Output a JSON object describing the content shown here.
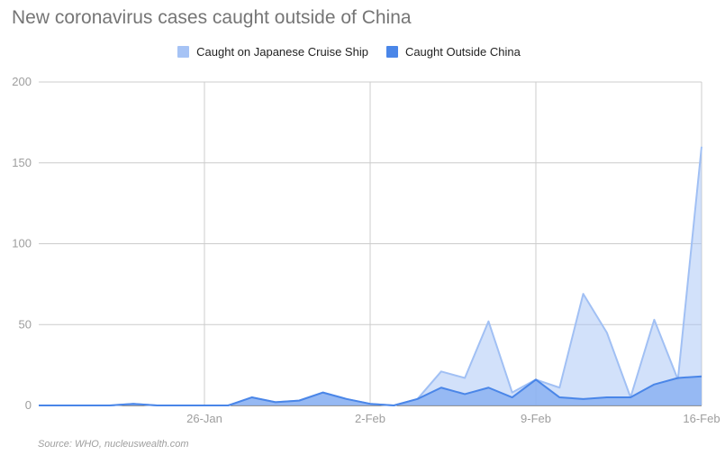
{
  "title": "New coronavirus cases caught outside of China",
  "source": "Source: WHO, nucleuswealth.com",
  "colors": {
    "cruise": "#a6c3f5",
    "cruise_line": "#a1c0f4",
    "outside": "#4a86e8",
    "outside_fill": "#8cb1f1",
    "grid": "#cccccc",
    "axis_text": "#9e9e9e"
  },
  "chart_data": {
    "type": "area",
    "title": "New coronavirus cases caught outside of China",
    "xlabel": "",
    "ylabel": "",
    "ylim": [
      0,
      200
    ],
    "yticks": [
      "0",
      "50",
      "100",
      "150",
      "200"
    ],
    "xticks": [
      {
        "date": "2020-01-26",
        "label": "26-Jan"
      },
      {
        "date": "2020-02-02",
        "label": "2-Feb"
      },
      {
        "date": "2020-02-09",
        "label": "9-Feb"
      },
      {
        "date": "2020-02-16",
        "label": "16-Feb"
      }
    ],
    "x": [
      "2020-01-19",
      "2020-01-20",
      "2020-01-21",
      "2020-01-22",
      "2020-01-23",
      "2020-01-24",
      "2020-01-25",
      "2020-01-26",
      "2020-01-27",
      "2020-01-28",
      "2020-01-29",
      "2020-01-30",
      "2020-01-31",
      "2020-02-01",
      "2020-02-02",
      "2020-02-03",
      "2020-02-04",
      "2020-02-05",
      "2020-02-06",
      "2020-02-07",
      "2020-02-08",
      "2020-02-09",
      "2020-02-10",
      "2020-02-11",
      "2020-02-12",
      "2020-02-13",
      "2020-02-14",
      "2020-02-15",
      "2020-02-16"
    ],
    "series": [
      {
        "name": "Caught on Japanese Cruise Ship",
        "values": [
          0,
          0,
          0,
          0,
          1,
          0,
          0,
          0,
          0,
          5,
          2,
          3,
          8,
          4,
          1,
          0,
          4,
          21,
          17,
          52,
          8,
          16,
          11,
          69,
          45,
          5,
          53,
          16,
          160
        ]
      },
      {
        "name": "Caught Outside China",
        "values": [
          0,
          0,
          0,
          0,
          1,
          0,
          0,
          0,
          0,
          5,
          2,
          3,
          8,
          4,
          1,
          0,
          4,
          11,
          7,
          11,
          5,
          16,
          5,
          4,
          5,
          5,
          13,
          17,
          18
        ]
      }
    ],
    "stacked": false,
    "grid": true,
    "legend": "top"
  }
}
